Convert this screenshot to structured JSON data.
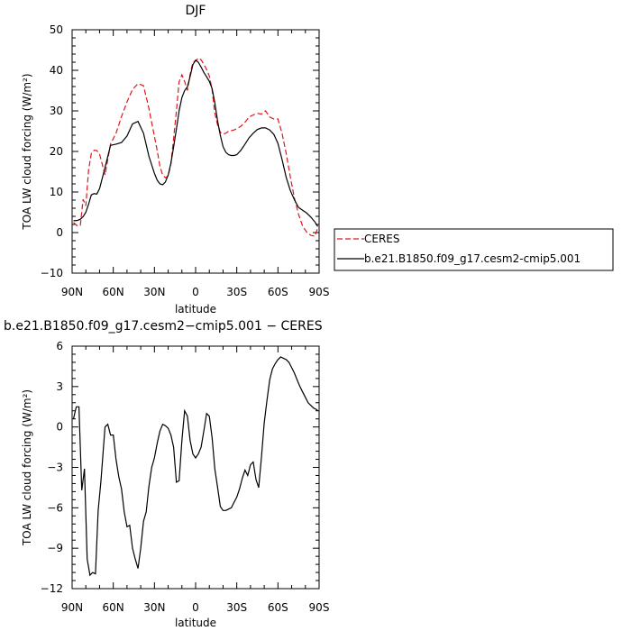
{
  "chart_data": [
    {
      "type": "line",
      "title": "DJF",
      "xlabel": "latitude",
      "ylabel": "TOA LW cloud forcing (W/m²)",
      "xlim": [
        90,
        -90
      ],
      "ylim": [
        -10,
        50
      ],
      "x_ticks": [
        90,
        60,
        30,
        0,
        -30,
        -60,
        -90
      ],
      "x_tick_labels": [
        "90N",
        "60N",
        "30N",
        "0",
        "30S",
        "60S",
        "90S"
      ],
      "y_ticks": [
        -10,
        0,
        10,
        20,
        30,
        40,
        50
      ],
      "y_tick_labels": [
        "−10",
        "0",
        "10",
        "20",
        "30",
        "40",
        "50"
      ],
      "legend_position": "right",
      "series": [
        {
          "name": "CERES",
          "color": "#e0161a",
          "dash": "dashed",
          "x": [
            89,
            86,
            84,
            82,
            80,
            78,
            76,
            74,
            72,
            70,
            66,
            62,
            58,
            54,
            50,
            46,
            42,
            38,
            34,
            30,
            28,
            26,
            24,
            22,
            20,
            18,
            16,
            14,
            12,
            10,
            8,
            6,
            4,
            2,
            0,
            -2,
            -4,
            -6,
            -8,
            -10,
            -12,
            -14,
            -16,
            -18,
            -20,
            -22,
            -24,
            -26,
            -28,
            -30,
            -33,
            -36,
            -39,
            -42,
            -45,
            -48,
            -51,
            -54,
            -57,
            -60,
            -63,
            -66,
            -69,
            -72,
            -75,
            -78,
            -81,
            -84,
            -87,
            -89
          ],
          "y": [
            2.5,
            1.6,
            1.8,
            8.2,
            6.6,
            15.5,
            19.5,
            20.3,
            20.2,
            19.4,
            14.2,
            21.8,
            24.5,
            28.6,
            32.2,
            35.3,
            36.7,
            36.2,
            30.6,
            23.7,
            20.2,
            16.3,
            14.2,
            13.5,
            14.0,
            17.0,
            23.2,
            30.0,
            37.2,
            38.9,
            37.3,
            35.0,
            39.0,
            42.0,
            42.3,
            43.0,
            42.6,
            41.5,
            40.2,
            38.6,
            35.2,
            29.5,
            26.5,
            24.7,
            24.3,
            24.5,
            25.0,
            25.1,
            25.3,
            25.6,
            26.2,
            27.2,
            28.5,
            29.0,
            29.4,
            29.2,
            30.0,
            28.5,
            28.0,
            28.0,
            24.5,
            19.5,
            13.8,
            8.5,
            4.5,
            1.6,
            0.1,
            -0.7,
            -0.9,
            1.2
          ]
        },
        {
          "name": "b.e21.B1850.f09_g17.cesm2-cmip5.001",
          "color": "#000000",
          "dash": "solid",
          "x": [
            89,
            86,
            84,
            82,
            80,
            78,
            76,
            74,
            72,
            70,
            66,
            62,
            58,
            54,
            50,
            46,
            42,
            38,
            34,
            30,
            28,
            26,
            24,
            22,
            20,
            18,
            16,
            14,
            12,
            10,
            8,
            6,
            4,
            2,
            0,
            -2,
            -4,
            -6,
            -8,
            -10,
            -12,
            -14,
            -16,
            -18,
            -20,
            -22,
            -24,
            -26,
            -28,
            -30,
            -33,
            -36,
            -39,
            -42,
            -45,
            -48,
            -51,
            -54,
            -57,
            -60,
            -63,
            -66,
            -69,
            -72,
            -75,
            -78,
            -81,
            -84,
            -87,
            -89
          ],
          "y": [
            2.9,
            3.0,
            3.3,
            3.9,
            5.0,
            7.0,
            9.3,
            9.6,
            9.5,
            10.8,
            16.0,
            21.5,
            21.8,
            22.2,
            23.8,
            26.8,
            27.4,
            24.5,
            18.8,
            14.6,
            12.9,
            12.0,
            11.8,
            12.5,
            14.2,
            17.1,
            21.1,
            25.5,
            30.0,
            33.3,
            35.0,
            35.9,
            38.5,
            41.4,
            42.5,
            42.0,
            40.8,
            39.5,
            38.4,
            37.3,
            35.5,
            32.0,
            27.5,
            24.0,
            21.2,
            19.8,
            19.2,
            19.0,
            19.0,
            19.2,
            20.3,
            21.8,
            23.4,
            24.5,
            25.4,
            25.8,
            25.8,
            25.3,
            24.2,
            22.0,
            18.0,
            13.6,
            10.4,
            8.1,
            6.2,
            5.5,
            4.8,
            3.8,
            2.6,
            1.5
          ]
        }
      ]
    },
    {
      "type": "line",
      "title": "b.e21.B1850.f09_g17.cesm2−cmip5.001 − CERES",
      "xlabel": "latitude",
      "ylabel": "TOA LW cloud forcing (W/m²)",
      "xlim": [
        90,
        -90
      ],
      "ylim": [
        -12,
        6
      ],
      "x_ticks": [
        90,
        60,
        30,
        0,
        -30,
        -60,
        -90
      ],
      "x_tick_labels": [
        "90N",
        "60N",
        "30N",
        "0",
        "30S",
        "60S",
        "90S"
      ],
      "y_ticks": [
        -12,
        -9,
        -6,
        -3,
        0,
        3,
        6
      ],
      "y_tick_labels": [
        "−12",
        "−9",
        "−6",
        "−3",
        "0",
        "3",
        "6"
      ],
      "series": [
        {
          "color": "#000000",
          "dash": "solid",
          "x": [
            89,
            87,
            85,
            83,
            81,
            79,
            77,
            75,
            73,
            71,
            69,
            66,
            64,
            62,
            60,
            58,
            56,
            54,
            52,
            50,
            48,
            46,
            44,
            42,
            40,
            38,
            36,
            34,
            32,
            30,
            28,
            26,
            24,
            22,
            20,
            18,
            16,
            14,
            12,
            10,
            8,
            6,
            4,
            2,
            0,
            -2,
            -4,
            -6,
            -8,
            -10,
            -12,
            -14,
            -16,
            -18,
            -20,
            -22,
            -24,
            -26,
            -28,
            -30,
            -32,
            -34,
            -36,
            -38,
            -40,
            -42,
            -44,
            -46,
            -48,
            -50,
            -52,
            -54,
            -56,
            -58,
            -60,
            -62,
            -64,
            -66,
            -68,
            -70,
            -72,
            -74,
            -76,
            -78,
            -80,
            -82,
            -84,
            -86,
            -88,
            -89
          ],
          "y": [
            0.6,
            1.5,
            1.5,
            -4.7,
            -3.1,
            -9.8,
            -11.0,
            -10.8,
            -10.9,
            -6.2,
            -4.0,
            0.0,
            0.2,
            -0.6,
            -0.6,
            -2.4,
            -3.7,
            -4.6,
            -6.3,
            -7.4,
            -7.3,
            -9.0,
            -9.8,
            -10.5,
            -9.0,
            -7.0,
            -6.3,
            -4.4,
            -3.0,
            -2.3,
            -1.2,
            -0.3,
            0.2,
            0.1,
            -0.1,
            -0.6,
            -1.5,
            -4.1,
            -4.0,
            -1.0,
            1.2,
            0.8,
            -1.0,
            -2.0,
            -2.3,
            -2.0,
            -1.5,
            -0.3,
            1.0,
            0.8,
            -0.8,
            -3.1,
            -4.5,
            -5.9,
            -6.2,
            -6.2,
            -6.1,
            -6.0,
            -5.6,
            -5.2,
            -4.6,
            -3.8,
            -3.2,
            -3.6,
            -2.8,
            -2.6,
            -3.9,
            -4.5,
            -2.2,
            0.3,
            2.0,
            3.5,
            4.3,
            4.7,
            5.0,
            5.2,
            5.1,
            5.0,
            4.8,
            4.4,
            4.0,
            3.5,
            3.0,
            2.6,
            2.2,
            1.8,
            1.6,
            1.4,
            1.3,
            1.2
          ]
        }
      ]
    }
  ]
}
